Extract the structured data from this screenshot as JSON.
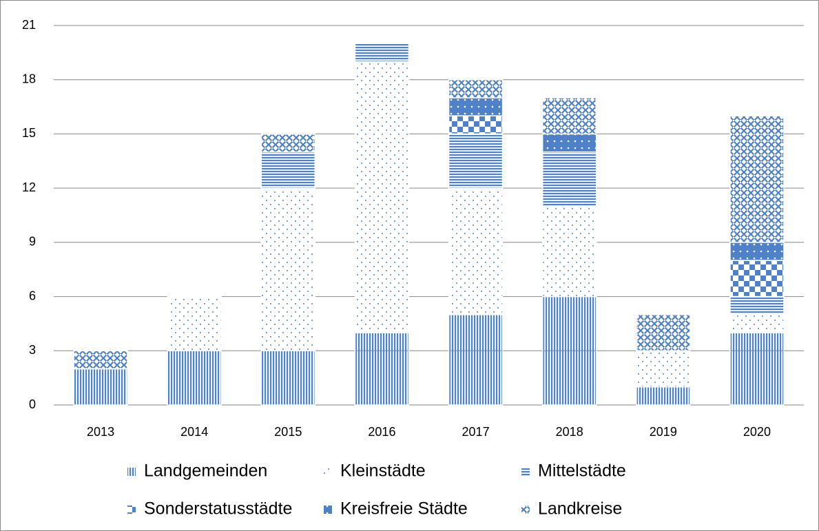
{
  "chart_data": {
    "type": "stacked_bar",
    "categories": [
      "2013",
      "2014",
      "2015",
      "2016",
      "2017",
      "2018",
      "2019",
      "2020"
    ],
    "series": [
      {
        "name": "Landgemeinden",
        "color": "#4f81c9",
        "pattern": "vertical",
        "values": [
          2,
          3,
          3,
          4,
          5,
          6,
          1,
          4
        ]
      },
      {
        "name": "Kleinstädte",
        "color": "#4f81c9",
        "pattern": "dots",
        "values": [
          0,
          3,
          9,
          15,
          7,
          5,
          2,
          1
        ]
      },
      {
        "name": "Mittelstädte",
        "color": "#4f81c9",
        "pattern": "horizontal",
        "values": [
          0,
          0,
          2,
          1,
          3,
          3,
          0,
          1
        ]
      },
      {
        "name": "Sonderstatusstädte",
        "color": "#4f81c9",
        "pattern": "checker",
        "values": [
          0,
          0,
          0,
          0,
          1,
          0,
          0,
          2
        ]
      },
      {
        "name": "Kreisfreie Städte",
        "color": "#4f81c9",
        "pattern": "solid-dots",
        "values": [
          0,
          0,
          0,
          0,
          1,
          1,
          0,
          1
        ]
      },
      {
        "name": "Landkreise",
        "color": "#4f81c9",
        "pattern": "crosshatch",
        "values": [
          1,
          0,
          1,
          0,
          1,
          2,
          2,
          7
        ]
      }
    ],
    "ylim": [
      0,
      21
    ],
    "yticks": [
      0,
      3,
      6,
      9,
      12,
      15,
      18,
      21
    ],
    "grid": true,
    "legend": "bottom"
  }
}
